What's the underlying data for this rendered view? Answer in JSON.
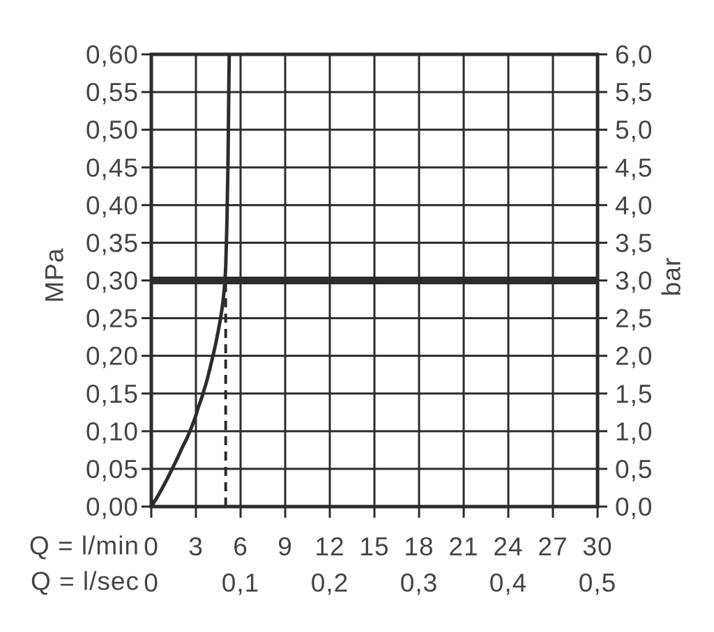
{
  "chart_data": {
    "type": "line",
    "background_color": "#ffffff",
    "line_color": "#2c2c2c",
    "text_color": "#454545",
    "x_axis": {
      "title_lmin": "Q = l/min",
      "title_lsec": "Q = l/sec",
      "range_lmin": [
        0,
        30
      ],
      "grid_step_lmin": 3,
      "ticks_lmin": [
        {
          "label": "0",
          "value": 0
        },
        {
          "label": "3",
          "value": 3
        },
        {
          "label": "6",
          "value": 6
        },
        {
          "label": "9",
          "value": 9
        },
        {
          "label": "12",
          "value": 12
        },
        {
          "label": "15",
          "value": 15
        },
        {
          "label": "18",
          "value": 18
        },
        {
          "label": "21",
          "value": 21
        },
        {
          "label": "24",
          "value": 24
        },
        {
          "label": "27",
          "value": 27
        },
        {
          "label": "30",
          "value": 30
        }
      ],
      "ticks_lsec": [
        {
          "label": "0",
          "value": 0
        },
        {
          "label": "0,1",
          "value": 6
        },
        {
          "label": "0,2",
          "value": 12
        },
        {
          "label": "0,3",
          "value": 18
        },
        {
          "label": "0,4",
          "value": 24
        },
        {
          "label": "0,5",
          "value": 30
        }
      ]
    },
    "left_axis": {
      "title": "MPa",
      "range": [
        0,
        0.6
      ],
      "grid_step": 0.05,
      "ticks": [
        {
          "label": "0,00",
          "value": 0
        },
        {
          "label": "0,05",
          "value": 0.05
        },
        {
          "label": "0,10",
          "value": 0.1
        },
        {
          "label": "0,15",
          "value": 0.15
        },
        {
          "label": "0,20",
          "value": 0.2
        },
        {
          "label": "0,25",
          "value": 0.25
        },
        {
          "label": "0,30",
          "value": 0.3
        },
        {
          "label": "0,35",
          "value": 0.35
        },
        {
          "label": "0,40",
          "value": 0.4
        },
        {
          "label": "0,45",
          "value": 0.45
        },
        {
          "label": "0,50",
          "value": 0.5
        },
        {
          "label": "0,55",
          "value": 0.55
        },
        {
          "label": "0,60",
          "value": 0.6
        }
      ]
    },
    "right_axis": {
      "title": "bar",
      "range": [
        0,
        6
      ],
      "ticks": [
        {
          "label": "0,0",
          "value": 0
        },
        {
          "label": "0,5",
          "value": 0.5
        },
        {
          "label": "1,0",
          "value": 1
        },
        {
          "label": "1,5",
          "value": 1.5
        },
        {
          "label": "2,0",
          "value": 2
        },
        {
          "label": "2,5",
          "value": 2.5
        },
        {
          "label": "3,0",
          "value": 3
        },
        {
          "label": "3,5",
          "value": 3.5
        },
        {
          "label": "4,0",
          "value": 4
        },
        {
          "label": "4,5",
          "value": 4.5
        },
        {
          "label": "5,0",
          "value": 5
        },
        {
          "label": "5,5",
          "value": 5.5
        },
        {
          "label": "6,0",
          "value": 6
        }
      ]
    },
    "reference_pressure_line": {
      "value_mpa": 0.3,
      "value_bar": 3.0
    },
    "rated_flow_dashed_line": {
      "value_lmin": 5.0,
      "from_mpa": 0,
      "to_mpa": 0.295
    },
    "series": [
      {
        "name": "flow-characteristic-curve",
        "points_lmin_mpa": [
          [
            0,
            0
          ],
          [
            0.35,
            0.011
          ],
          [
            0.7,
            0.023
          ],
          [
            1.05,
            0.036
          ],
          [
            1.4,
            0.05
          ],
          [
            1.75,
            0.064
          ],
          [
            2.05,
            0.077
          ],
          [
            2.4,
            0.091
          ],
          [
            2.7,
            0.105
          ],
          [
            2.95,
            0.118
          ],
          [
            3.15,
            0.131
          ],
          [
            3.4,
            0.145
          ],
          [
            3.6,
            0.158
          ],
          [
            3.8,
            0.172
          ],
          [
            4.0,
            0.188
          ],
          [
            4.18,
            0.203
          ],
          [
            4.35,
            0.218
          ],
          [
            4.5,
            0.233
          ],
          [
            4.63,
            0.247
          ],
          [
            4.73,
            0.259
          ],
          [
            4.82,
            0.272
          ],
          [
            4.89,
            0.285
          ],
          [
            4.95,
            0.3
          ],
          [
            5.0,
            0.318
          ],
          [
            5.05,
            0.35
          ],
          [
            5.09,
            0.383
          ],
          [
            5.12,
            0.417
          ],
          [
            5.15,
            0.45
          ],
          [
            5.17,
            0.483
          ],
          [
            5.19,
            0.517
          ],
          [
            5.21,
            0.55
          ],
          [
            5.22,
            0.575
          ],
          [
            5.24,
            0.6
          ]
        ]
      }
    ]
  }
}
